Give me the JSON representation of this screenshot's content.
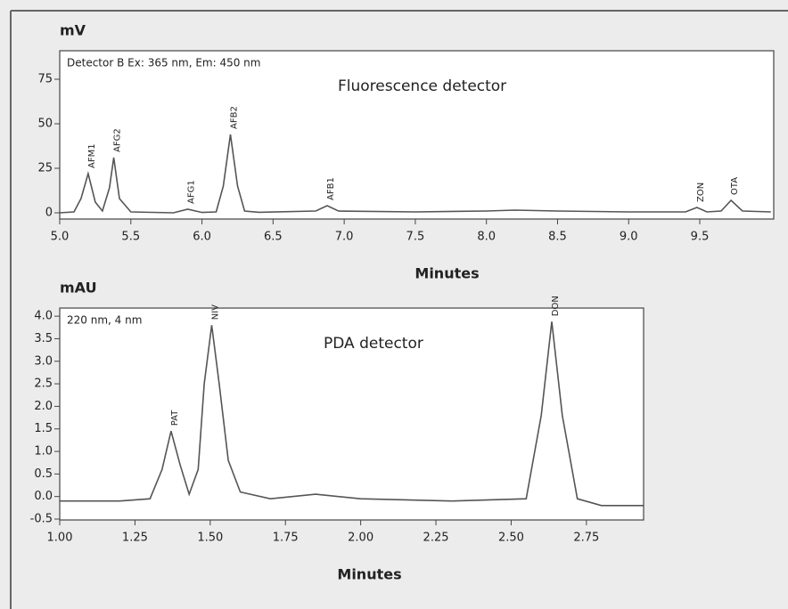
{
  "chart_data": [
    {
      "type": "line",
      "title": "Fluorescence detector",
      "subtitle": "Detector B Ex: 365 nm, Em: 450 nm",
      "y_label": "mV",
      "x_label": "Minutes",
      "color": "#555555",
      "x": [
        5.0,
        5.1,
        5.15,
        5.2,
        5.25,
        5.3,
        5.35,
        5.38,
        5.42,
        5.5,
        5.8,
        5.9,
        6.0,
        6.1,
        6.15,
        6.2,
        6.25,
        6.3,
        6.4,
        6.8,
        6.88,
        6.96,
        7.5,
        8.0,
        8.2,
        8.5,
        9.0,
        9.4,
        9.48,
        9.55,
        9.65,
        9.72,
        9.8,
        10.0
      ],
      "values": [
        0,
        0.5,
        8,
        22,
        6,
        1,
        14,
        31,
        8,
        0.5,
        0,
        2,
        0.2,
        0.5,
        15,
        44,
        15,
        1,
        0.3,
        1,
        4,
        1,
        0.5,
        1,
        1.5,
        1,
        0.5,
        0.5,
        3,
        0.5,
        1,
        7,
        1,
        0.5
      ],
      "annotations": [
        {
          "text": "AFM1",
          "x": 5.2,
          "y": 22
        },
        {
          "text": "AFG2",
          "x": 5.38,
          "y": 31
        },
        {
          "text": "AFG1",
          "x": 5.9,
          "y": 2
        },
        {
          "text": "AFB2",
          "x": 6.2,
          "y": 44
        },
        {
          "text": "AFB1",
          "x": 6.88,
          "y": 4
        },
        {
          "text": "ZON",
          "x": 9.48,
          "y": 3
        },
        {
          "text": "OTA",
          "x": 9.72,
          "y": 7
        }
      ],
      "xlim": [
        5.0,
        10.02
      ],
      "ylim": [
        -3.5,
        91
      ],
      "xticks": [
        {
          "value": 5.0,
          "label": "5.0"
        },
        5.5,
        {
          "value": 6.0,
          "label": "6.0"
        },
        6.5,
        {
          "value": 7.0,
          "label": "7.0"
        },
        7.5,
        {
          "value": 8.0,
          "label": "8.0"
        },
        8.5,
        {
          "value": 9.0,
          "label": "9.0"
        },
        9.5
      ],
      "yticks": [
        0,
        25,
        50,
        75
      ]
    },
    {
      "type": "line",
      "title": "PDA detector",
      "subtitle": "220 nm, 4 nm",
      "y_label": "mAU",
      "x_label": "Minutes",
      "color": "#555555",
      "x": [
        1.0,
        1.2,
        1.3,
        1.34,
        1.37,
        1.4,
        1.43,
        1.46,
        1.48,
        1.505,
        1.53,
        1.56,
        1.6,
        1.7,
        1.85,
        2.0,
        2.3,
        2.55,
        2.6,
        2.635,
        2.67,
        2.72,
        2.8,
        2.94
      ],
      "values": [
        -0.1,
        -0.1,
        -0.05,
        0.6,
        1.45,
        0.7,
        0.05,
        0.6,
        2.5,
        3.8,
        2.5,
        0.8,
        0.1,
        -0.05,
        0.05,
        -0.05,
        -0.1,
        -0.05,
        1.8,
        3.88,
        1.8,
        -0.05,
        -0.2,
        -0.2
      ],
      "annotations": [
        {
          "text": "PAT",
          "x": 1.37,
          "y": 1.45
        },
        {
          "text": "NIV",
          "x": 1.505,
          "y": 3.8
        },
        {
          "text": "DON",
          "x": 2.635,
          "y": 3.88
        }
      ],
      "xlim": [
        1.0,
        2.94
      ],
      "ylim": [
        -0.52,
        4.18
      ],
      "xticks": [
        {
          "value": 1.0,
          "label": "1.00"
        },
        1.25,
        {
          "value": 1.5,
          "label": "1.50"
        },
        1.75,
        {
          "value": 2.0,
          "label": "2.00"
        },
        2.25,
        {
          "value": 2.5,
          "label": "2.50"
        },
        2.75
      ],
      "yticks": [
        {
          "value": 4.0,
          "label": "4.0"
        },
        3.5,
        {
          "value": 3.0,
          "label": "3.0"
        },
        2.5,
        {
          "value": 2.0,
          "label": "2.0"
        },
        1.5,
        {
          "value": 1.0,
          "label": "1.0"
        },
        0.5,
        {
          "value": 0.0,
          "label": "0.0"
        },
        -0.5
      ]
    }
  ]
}
